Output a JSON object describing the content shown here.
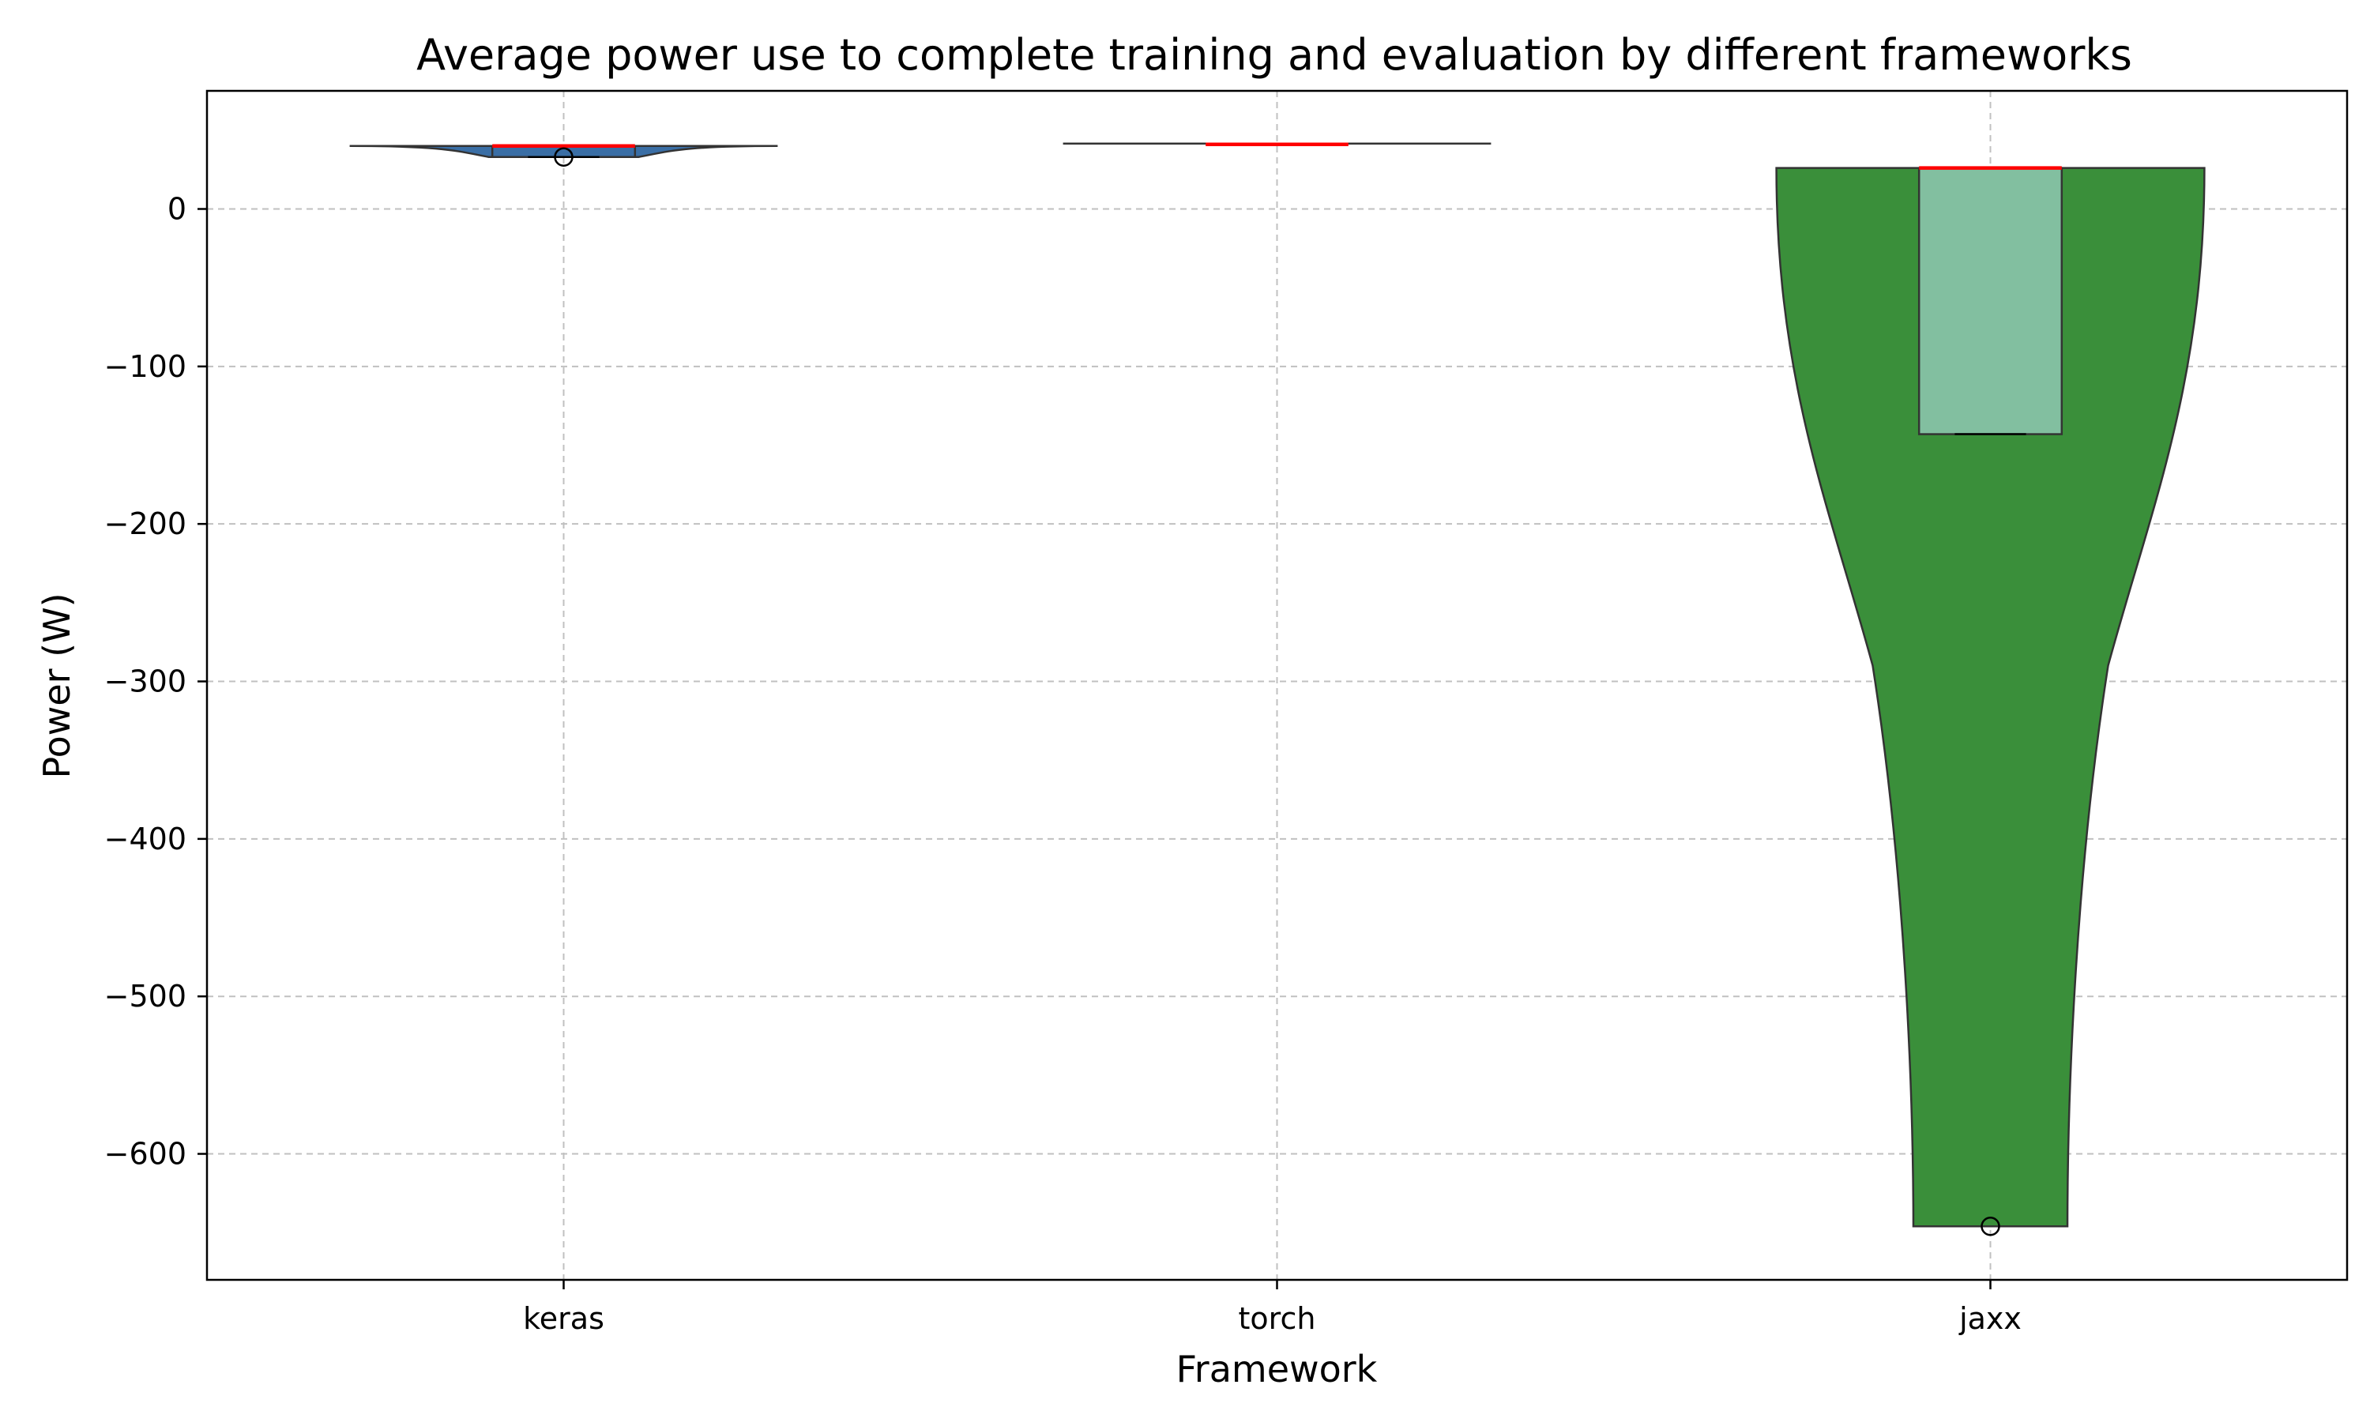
{
  "chart_data": {
    "type": "violin",
    "title": "Average power use to complete training and evaluation by different frameworks",
    "xlabel": "Framework",
    "ylabel": "Power (W)",
    "categories": [
      "keras",
      "torch",
      "jaxx"
    ],
    "ylim": [
      -680,
      75
    ],
    "yticks": [
      0,
      -100,
      -200,
      -300,
      -400,
      -500,
      -600
    ],
    "ytick_labels": [
      "0",
      "−100",
      "−200",
      "−300",
      "−400",
      "−500",
      "−600"
    ],
    "grid": true,
    "series": [
      {
        "category": "keras",
        "fill": "#3a6ea5",
        "box": {
          "q1": 33,
          "q3": 40,
          "median": 40,
          "whisker_low": 33,
          "whisker_high": 40
        },
        "outliers": [
          33
        ],
        "violin_range": [
          33,
          40
        ]
      },
      {
        "category": "torch",
        "fill": "#3a6ea5",
        "box": {
          "q1": 41,
          "q3": 41,
          "median": 41,
          "whisker_low": 41,
          "whisker_high": 41
        },
        "outliers": [],
        "violin_range": [
          40.5,
          41.5
        ]
      },
      {
        "category": "jaxx",
        "fill": "#3a8f3a",
        "box": {
          "q1": -143,
          "q3": 26,
          "median": 26,
          "whisker_low": -143,
          "whisker_high": 26
        },
        "outliers": [
          -646
        ],
        "violin_range": [
          -646,
          26
        ]
      }
    ],
    "colors": {
      "median": "#ff0000",
      "box_fill": "#82bfa0",
      "outline": "#333333",
      "grid": "#c0c0c0"
    }
  }
}
